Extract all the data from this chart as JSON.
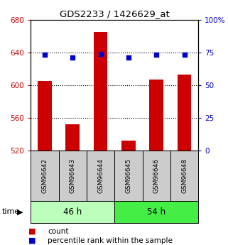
{
  "title": "GDS2233 / 1426629_at",
  "samples": [
    "GSM96642",
    "GSM96643",
    "GSM96644",
    "GSM96645",
    "GSM96646",
    "GSM96648"
  ],
  "counts": [
    605,
    552,
    665,
    532,
    607,
    613
  ],
  "percentiles": [
    73,
    71,
    74,
    71,
    73,
    73
  ],
  "ylim_left": [
    520,
    680
  ],
  "ylim_right": [
    0,
    100
  ],
  "yticks_left": [
    520,
    560,
    600,
    640,
    680
  ],
  "yticks_right": [
    0,
    25,
    50,
    75,
    100
  ],
  "grid_lines": [
    560,
    600,
    640
  ],
  "groups": [
    {
      "label": "46 h",
      "indices": [
        0,
        1,
        2
      ],
      "color": "#bbffbb"
    },
    {
      "label": "54 h",
      "indices": [
        3,
        4,
        5
      ],
      "color": "#44ee44"
    }
  ],
  "bar_color": "#cc0000",
  "dot_color": "#0000cc",
  "bar_width": 0.5,
  "bg_color": "#ffffff",
  "sample_bg_color": "#cccccc",
  "left_label_color": "#cc0000",
  "right_label_color": "#0000cc",
  "figsize": [
    3.21,
    3.45
  ],
  "dpi": 100
}
